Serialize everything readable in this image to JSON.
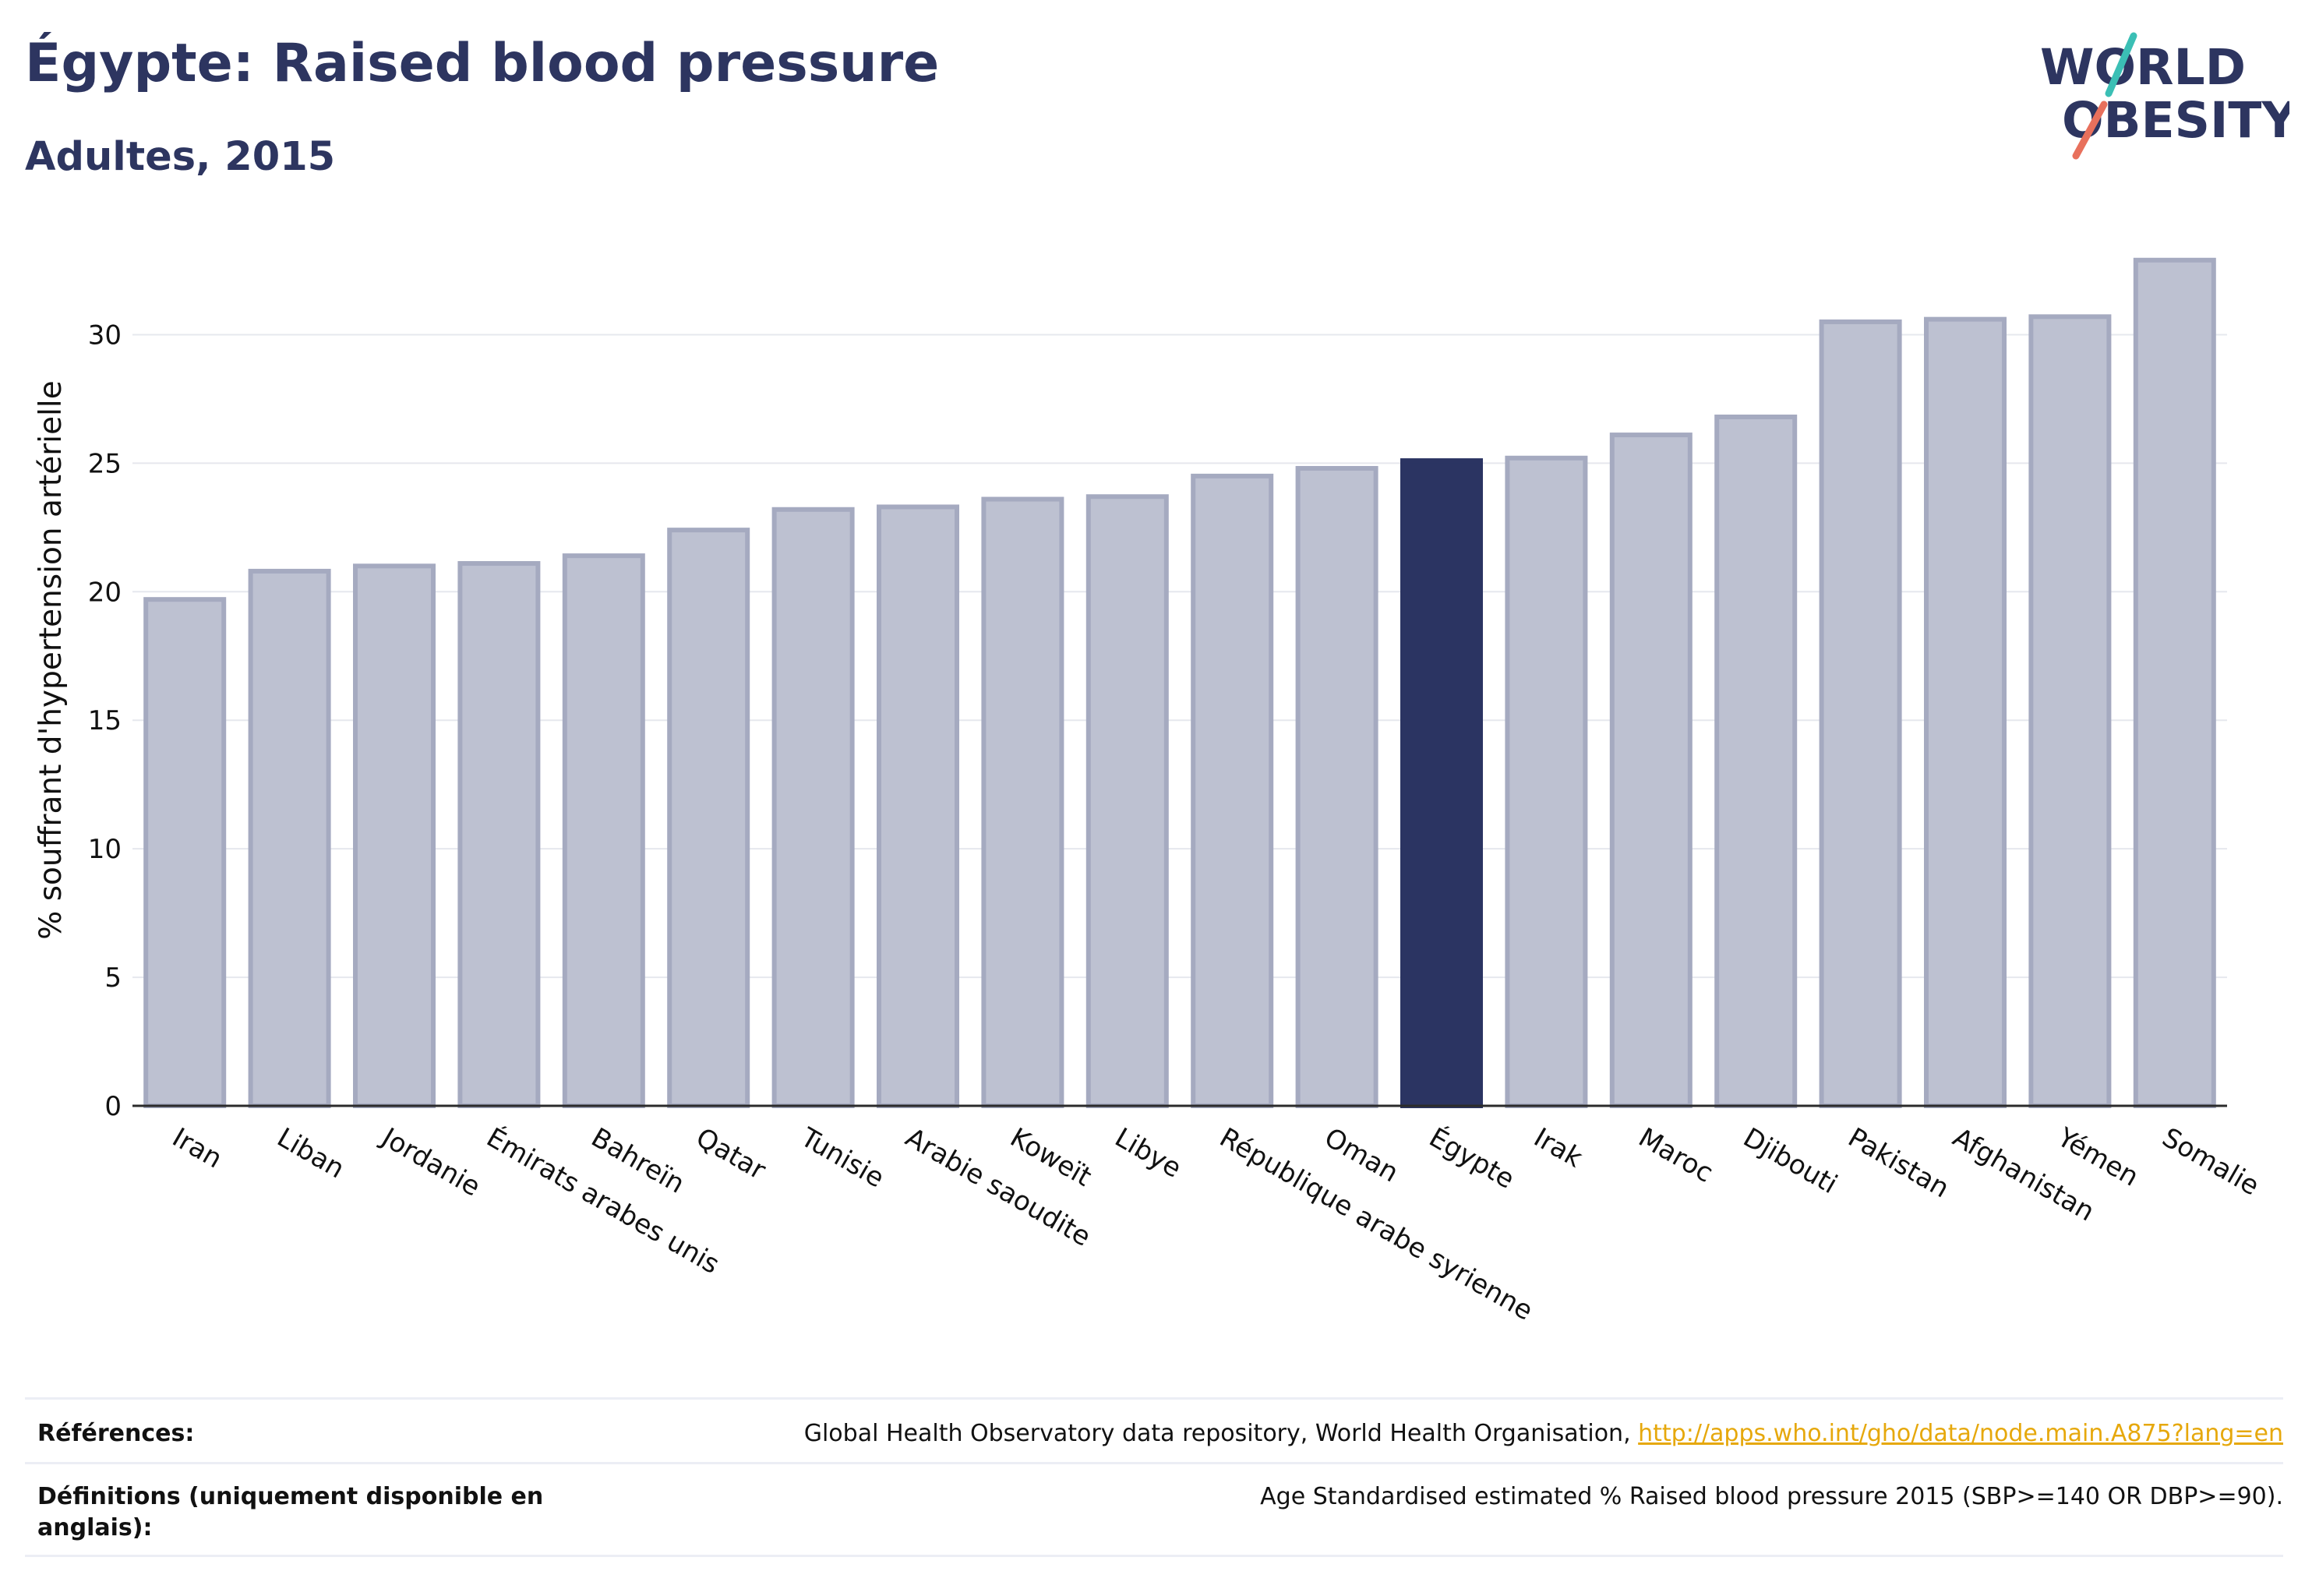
{
  "header": {
    "title": "Égypte: Raised blood pressure",
    "subtitle": "Adultes, 2015"
  },
  "logo": {
    "line1": "WORLD",
    "line2": "OBESITY"
  },
  "colors": {
    "bar": "#bdc1d1",
    "bar_outline": "#a5aac0",
    "highlight": "#2b3462",
    "text": "#2d3560",
    "logo_teal": "#3bbfb5",
    "logo_coral": "#e8705c",
    "link": "#e6a80c"
  },
  "chart_data": {
    "type": "bar",
    "ylabel": "% souffrant d'hypertension artérielle",
    "xlabel": "",
    "ylim": [
      0,
      33.5
    ],
    "yticks": [
      0,
      5,
      10,
      15,
      20,
      25,
      30
    ],
    "grid": true,
    "highlight": "Égypte",
    "categories": [
      "Iran",
      "Liban",
      "Jordanie",
      "Émirats arabes unis",
      "Bahreïn",
      "Qatar",
      "Tunisie",
      "Arabie saoudite",
      "Koweït",
      "Libye",
      "République arabe syrienne",
      "Oman",
      "Égypte",
      "Irak",
      "Maroc",
      "Djibouti",
      "Pakistan",
      "Afghanistan",
      "Yémen",
      "Somalie"
    ],
    "values": [
      19.7,
      20.8,
      21.0,
      21.1,
      21.4,
      22.4,
      23.2,
      23.3,
      23.6,
      23.7,
      24.5,
      24.8,
      25.1,
      25.2,
      26.1,
      26.8,
      30.5,
      30.6,
      30.7,
      32.9
    ]
  },
  "footer": {
    "references_label": "Références:",
    "references_text": "Global Health Observatory data repository, World Health Organisation, ",
    "references_link": "http://apps.who.int/gho/data/node.main.A875?lang=en",
    "definitions_label": "Définitions (uniquement disponible en anglais):",
    "definitions_text": "Age Standardised estimated % Raised blood pressure 2015 (SBP>=140 OR DBP>=90)."
  }
}
